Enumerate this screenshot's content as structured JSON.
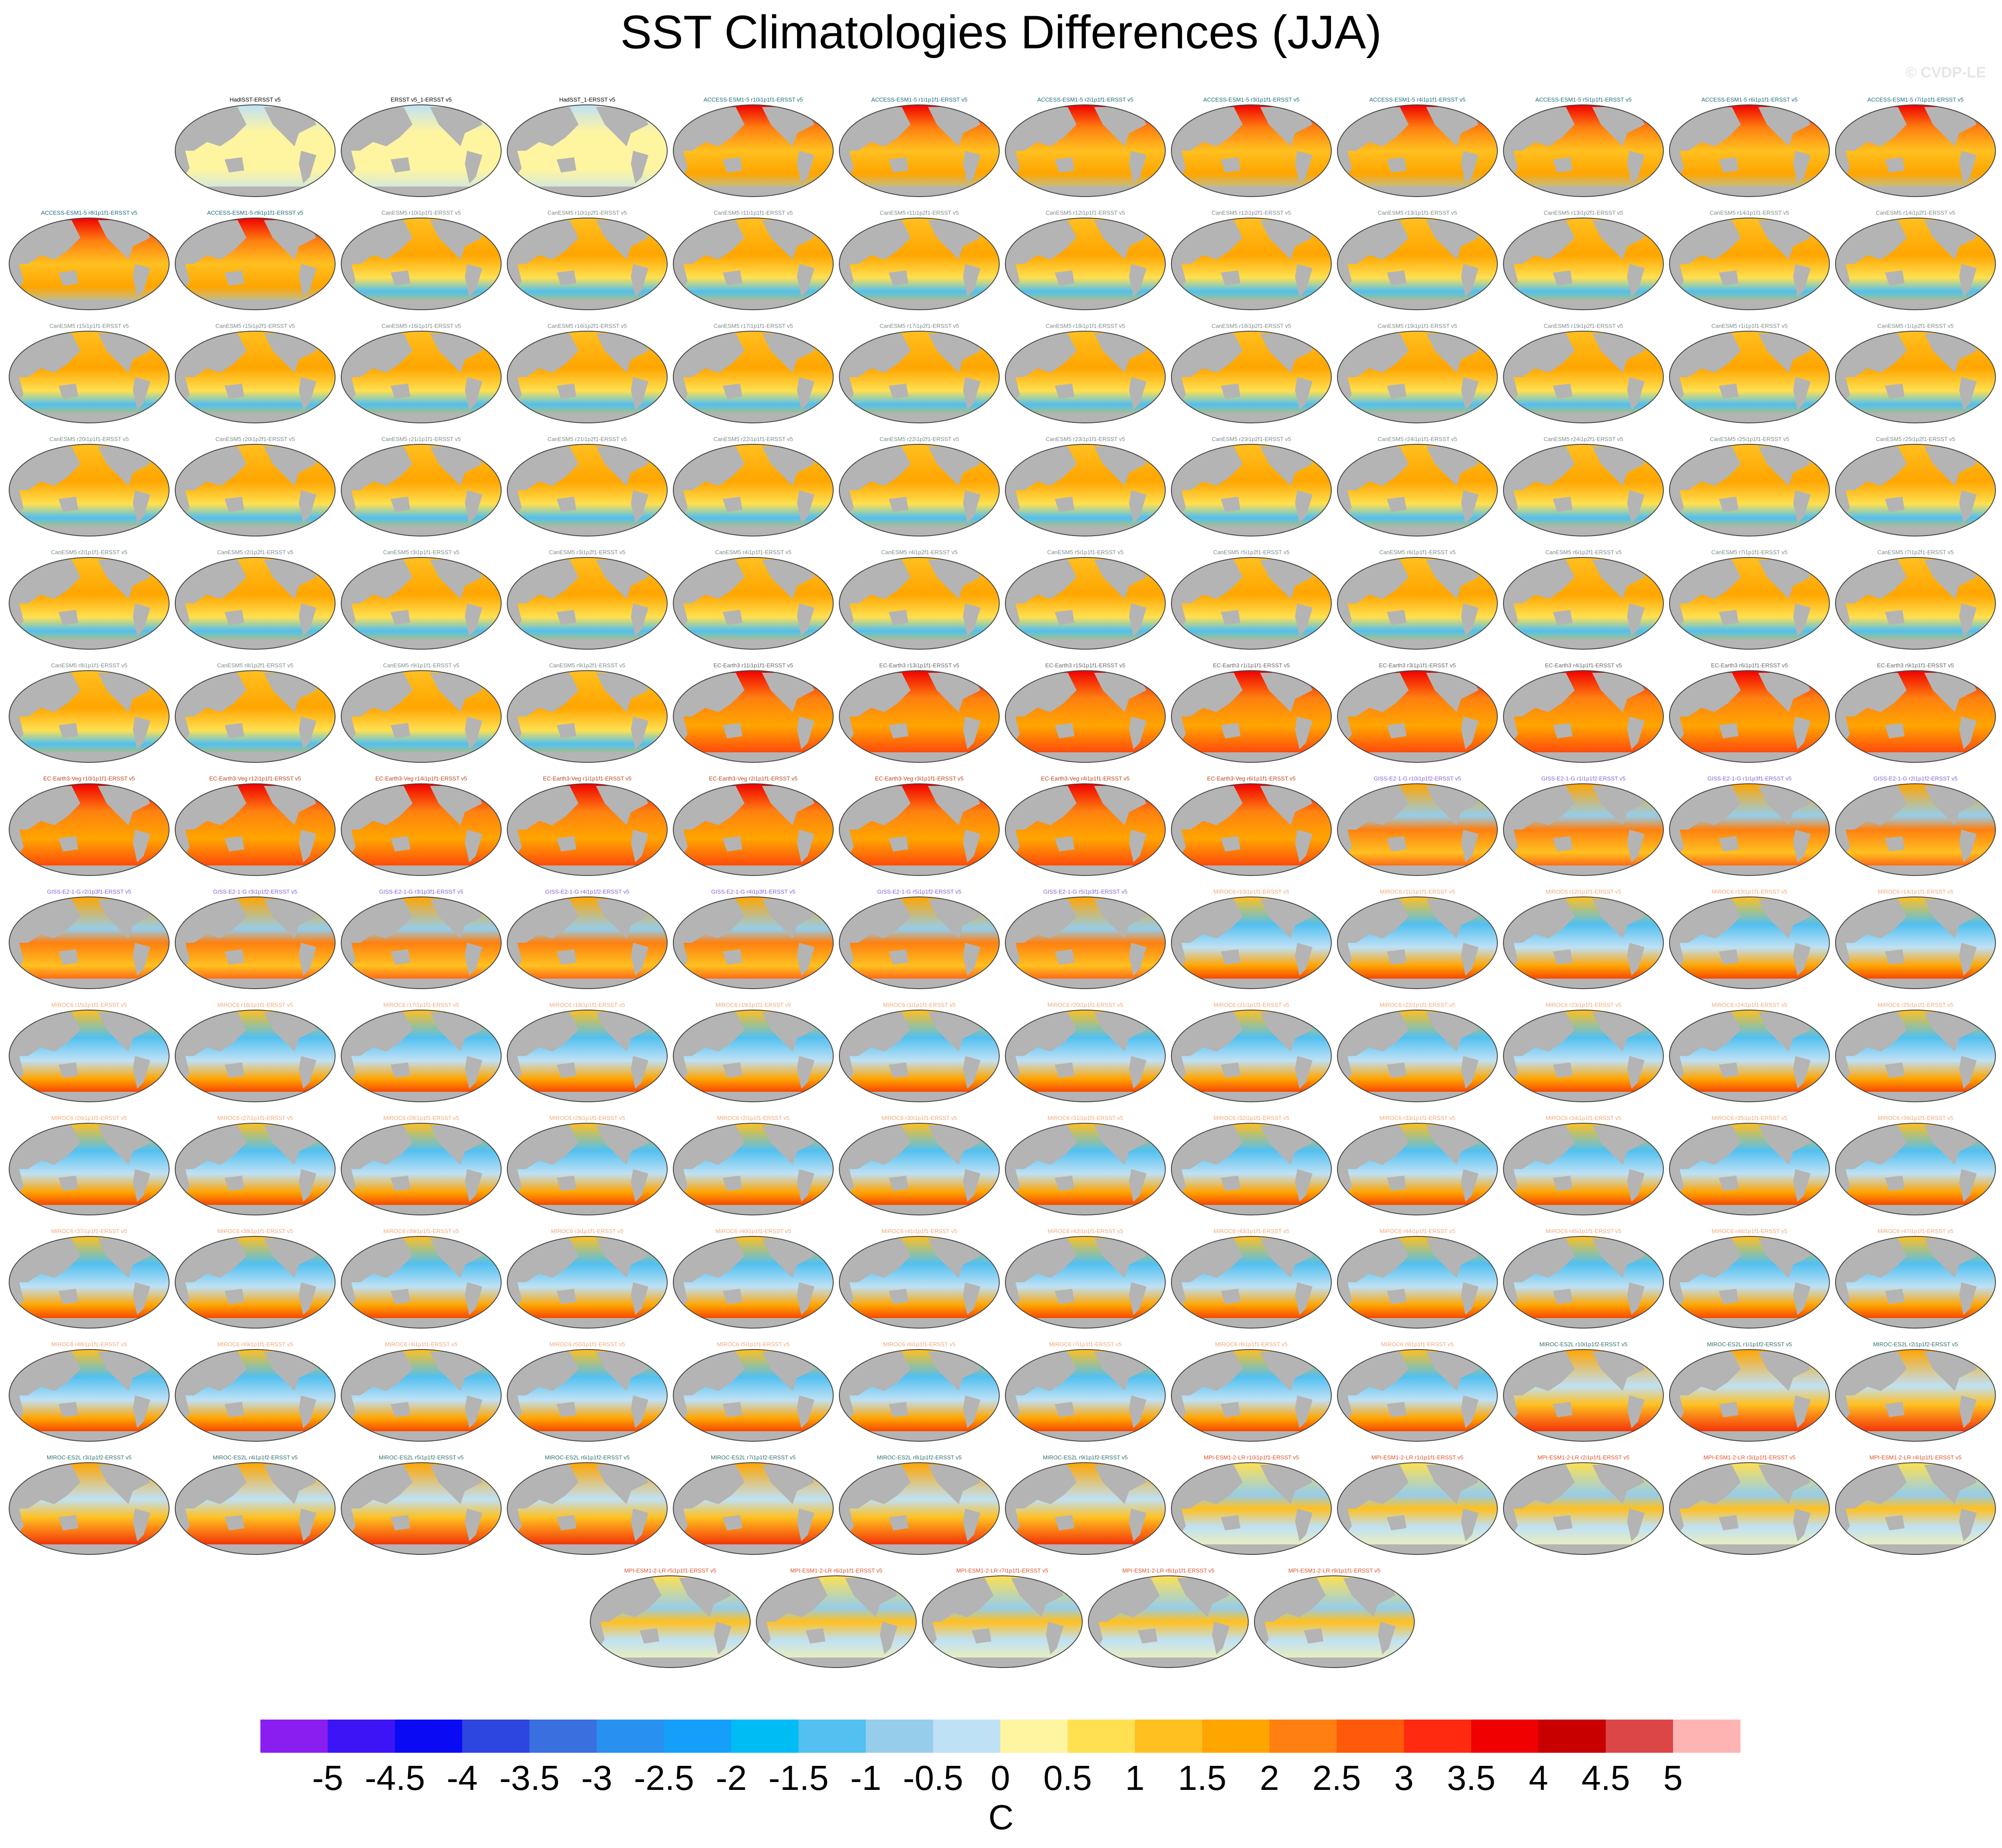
{
  "figure": {
    "title": "SST Climatologies Differences (JJA)",
    "copyright": "© CVDP-LE",
    "panels": [
      {
        "title": "HadISST-ERSST v5",
        "color": "#000000"
      },
      {
        "title": "ERSST v5_1-ERSST v5",
        "color": "#000000"
      },
      {
        "title": "HadSST_1-ERSST v5",
        "color": "#000000"
      },
      {
        "title": "ACCESS-ESM1-5 r10i1p1f1-ERSST v5",
        "color": "#1b6b7a"
      },
      {
        "title": "ACCESS-ESM1-5 r1i1p1f1-ERSST v5",
        "color": "#1b6b7a"
      },
      {
        "title": "ACCESS-ESM1-5 r2i1p1f1-ERSST v5",
        "color": "#1b6b7a"
      },
      {
        "title": "ACCESS-ESM1-5 r3i1p1f1-ERSST v5",
        "color": "#1b6b7a"
      },
      {
        "title": "ACCESS-ESM1-5 r4i1p1f1-ERSST v5",
        "color": "#1b6b7a"
      },
      {
        "title": "ACCESS-ESM1-5 r5i1p1f1-ERSST v5",
        "color": "#1b6b7a"
      },
      {
        "title": "ACCESS-ESM1-5 r6i1p1f1-ERSST v5",
        "color": "#1b6b7a"
      },
      {
        "title": "ACCESS-ESM1-5 r7i1p1f1-ERSST v5",
        "color": "#1b6b7a"
      },
      {
        "title": "ACCESS-ESM1-5 r8i1p1f1-ERSST v5",
        "color": "#1b6b7a"
      },
      {
        "title": "ACCESS-ESM1-5 r9i1p1f1-ERSST v5",
        "color": "#1b6b7a"
      },
      {
        "title": "CanESM5 r10i1p1f1-ERSST v5",
        "color": "#7d8a8a"
      },
      {
        "title": "CanESM5 r10i1p2f1-ERSST v5",
        "color": "#7d8a8a"
      },
      {
        "title": "CanESM5 r11i1p1f1-ERSST v5",
        "color": "#7d8a8a"
      },
      {
        "title": "CanESM5 r11i1p2f1-ERSST v5",
        "color": "#7d8a8a"
      },
      {
        "title": "CanESM5 r12i1p1f1-ERSST v5",
        "color": "#7d8a8a"
      },
      {
        "title": "CanESM5 r12i1p2f1-ERSST v5",
        "color": "#7d8a8a"
      },
      {
        "title": "CanESM5 r13i1p1f1-ERSST v5",
        "color": "#7d8a8a"
      },
      {
        "title": "CanESM5 r13i1p2f1-ERSST v5",
        "color": "#7d8a8a"
      },
      {
        "title": "CanESM5 r14i1p1f1-ERSST v5",
        "color": "#7d8a8a"
      },
      {
        "title": "CanESM5 r14i1p2f1-ERSST v5",
        "color": "#7d8a8a"
      },
      {
        "title": "CanESM5 r15i1p1f1-ERSST v5",
        "color": "#7d8a8a"
      },
      {
        "title": "CanESM5 r15i1p2f1-ERSST v5",
        "color": "#7d8a8a"
      },
      {
        "title": "CanESM5 r16i1p1f1-ERSST v5",
        "color": "#7d8a8a"
      },
      {
        "title": "CanESM5 r16i1p2f1-ERSST v5",
        "color": "#7d8a8a"
      },
      {
        "title": "CanESM5 r17i1p1f1-ERSST v5",
        "color": "#7d8a8a"
      },
      {
        "title": "CanESM5 r17i1p2f1-ERSST v5",
        "color": "#7d8a8a"
      },
      {
        "title": "CanESM5 r18i1p1f1-ERSST v5",
        "color": "#7d8a8a"
      },
      {
        "title": "CanESM5 r18i1p2f1-ERSST v5",
        "color": "#7d8a8a"
      },
      {
        "title": "CanESM5 r19i1p1f1-ERSST v5",
        "color": "#7d8a8a"
      },
      {
        "title": "CanESM5 r19i1p2f1-ERSST v5",
        "color": "#7d8a8a"
      },
      {
        "title": "CanESM5 r1i1p1f1-ERSST v5",
        "color": "#7d8a8a"
      },
      {
        "title": "CanESM5 r1i1p2f1-ERSST v5",
        "color": "#7d8a8a"
      },
      {
        "title": "CanESM5 r20i1p1f1-ERSST v5",
        "color": "#7d8a8a"
      },
      {
        "title": "CanESM5 r20i1p2f1-ERSST v5",
        "color": "#7d8a8a"
      },
      {
        "title": "CanESM5 r21i1p1f1-ERSST v5",
        "color": "#7d8a8a"
      },
      {
        "title": "CanESM5 r21i1p2f1-ERSST v5",
        "color": "#7d8a8a"
      },
      {
        "title": "CanESM5 r22i1p1f1-ERSST v5",
        "color": "#7d8a8a"
      },
      {
        "title": "CanESM5 r22i1p2f1-ERSST v5",
        "color": "#7d8a8a"
      },
      {
        "title": "CanESM5 r23i1p1f1-ERSST v5",
        "color": "#7d8a8a"
      },
      {
        "title": "CanESM5 r23i1p2f1-ERSST v5",
        "color": "#7d8a8a"
      },
      {
        "title": "CanESM5 r24i1p1f1-ERSST v5",
        "color": "#7d8a8a"
      },
      {
        "title": "CanESM5 r24i1p2f1-ERSST v5",
        "color": "#7d8a8a"
      },
      {
        "title": "CanESM5 r25i1p1f1-ERSST v5",
        "color": "#7d8a8a"
      },
      {
        "title": "CanESM5 r25i1p2f1-ERSST v5",
        "color": "#7d8a8a"
      },
      {
        "title": "CanESM5 r2i1p1f1-ERSST v5",
        "color": "#7d8a8a"
      },
      {
        "title": "CanESM5 r2i1p2f1-ERSST v5",
        "color": "#7d8a8a"
      },
      {
        "title": "CanESM5 r3i1p1f1-ERSST v5",
        "color": "#7d8a8a"
      },
      {
        "title": "CanESM5 r3i1p2f1-ERSST v5",
        "color": "#7d8a8a"
      },
      {
        "title": "CanESM5 r4i1p1f1-ERSST v5",
        "color": "#7d8a8a"
      },
      {
        "title": "CanESM5 r4i1p2f1-ERSST v5",
        "color": "#7d8a8a"
      },
      {
        "title": "CanESM5 r5i1p1f1-ERSST v5",
        "color": "#7d8a8a"
      },
      {
        "title": "CanESM5 r5i1p2f1-ERSST v5",
        "color": "#7d8a8a"
      },
      {
        "title": "CanESM5 r6i1p1f1-ERSST v5",
        "color": "#7d8a8a"
      },
      {
        "title": "CanESM5 r6i1p2f1-ERSST v5",
        "color": "#7d8a8a"
      },
      {
        "title": "CanESM5 r7i1p1f1-ERSST v5",
        "color": "#7d8a8a"
      },
      {
        "title": "CanESM5 r7i1p2f1-ERSST v5",
        "color": "#7d8a8a"
      },
      {
        "title": "CanESM5 r8i1p1f1-ERSST v5",
        "color": "#7d8a8a"
      },
      {
        "title": "CanESM5 r8i1p2f1-ERSST v5",
        "color": "#7d8a8a"
      },
      {
        "title": "CanESM5 r9i1p1f1-ERSST v5",
        "color": "#7d8a8a"
      },
      {
        "title": "CanESM5 r9i1p2f1-ERSST v5",
        "color": "#7d8a8a"
      },
      {
        "title": "EC-Earth3 r11i1p1f1-ERSST v5",
        "color": "#666666"
      },
      {
        "title": "EC-Earth3 r13i1p1f1-ERSST v5",
        "color": "#666666"
      },
      {
        "title": "EC-Earth3 r15i1p1f1-ERSST v5",
        "color": "#666666"
      },
      {
        "title": "EC-Earth3 r1i1p1f1-ERSST v5",
        "color": "#666666"
      },
      {
        "title": "EC-Earth3 r3i1p1f1-ERSST v5",
        "color": "#666666"
      },
      {
        "title": "EC-Earth3 r4i1p1f1-ERSST v5",
        "color": "#666666"
      },
      {
        "title": "EC-Earth3 r6i1p1f1-ERSST v5",
        "color": "#666666"
      },
      {
        "title": "EC-Earth3 r9i1p1f1-ERSST v5",
        "color": "#666666"
      },
      {
        "title": "EC-Earth3-Veg r10i1p1f1-ERSST v5",
        "color": "#b5471b"
      },
      {
        "title": "EC-Earth3-Veg r12i1p1f1-ERSST v5",
        "color": "#b5471b"
      },
      {
        "title": "EC-Earth3-Veg r14i1p1f1-ERSST v5",
        "color": "#b5471b"
      },
      {
        "title": "EC-Earth3-Veg r1i1p1f1-ERSST v5",
        "color": "#b5471b"
      },
      {
        "title": "EC-Earth3-Veg r2i1p1f1-ERSST v5",
        "color": "#b5471b"
      },
      {
        "title": "EC-Earth3-Veg r3i1p1f1-ERSST v5",
        "color": "#b5471b"
      },
      {
        "title": "EC-Earth3-Veg r4i1p1f1-ERSST v5",
        "color": "#b5471b"
      },
      {
        "title": "EC-Earth3-Veg r6i1p1f1-ERSST v5",
        "color": "#b5471b"
      },
      {
        "title": "GISS-E2-1-G r10i1p1f2-ERSST v5",
        "color": "#8a5fd1"
      },
      {
        "title": "GISS-E2-1-G r1i1p1f2-ERSST v5",
        "color": "#8a5fd1"
      },
      {
        "title": "GISS-E2-1-G r1i1p3f1-ERSST v5",
        "color": "#8a5fd1"
      },
      {
        "title": "GISS-E2-1-G r2i1p1f2-ERSST v5",
        "color": "#8a5fd1"
      },
      {
        "title": "GISS-E2-1-G r2i1p3f1-ERSST v5",
        "color": "#8a5fd1"
      },
      {
        "title": "GISS-E2-1-G r3i1p1f2-ERSST v5",
        "color": "#8a5fd1"
      },
      {
        "title": "GISS-E2-1-G r3i1p3f1-ERSST v5",
        "color": "#8a5fd1"
      },
      {
        "title": "GISS-E2-1-G r4i1p1f2-ERSST v5",
        "color": "#8a5fd1"
      },
      {
        "title": "GISS-E2-1-G r4i1p3f1-ERSST v5",
        "color": "#8a5fd1"
      },
      {
        "title": "GISS-E2-1-G r5i1p1f2-ERSST v5",
        "color": "#8a5fd1"
      },
      {
        "title": "GISS-E2-1-G r5i1p3f1-ERSST v5",
        "color": "#8a5fd1"
      },
      {
        "title": "MIROC6 r10i1p1f1-ERSST v5",
        "color": "#f0a878"
      },
      {
        "title": "MIROC6 r11i1p1f1-ERSST v5",
        "color": "#f0a878"
      },
      {
        "title": "MIROC6 r12i1p1f1-ERSST v5",
        "color": "#f0a878"
      },
      {
        "title": "MIROC6 r13i1p1f1-ERSST v5",
        "color": "#f0a878"
      },
      {
        "title": "MIROC6 r14i1p1f1-ERSST v5",
        "color": "#f0a878"
      },
      {
        "title": "MIROC6 r15i1p1f1-ERSST v5",
        "color": "#f0a878"
      },
      {
        "title": "MIROC6 r16i1p1f1-ERSST v5",
        "color": "#f0a878"
      },
      {
        "title": "MIROC6 r17i1p1f1-ERSST v5",
        "color": "#f0a878"
      },
      {
        "title": "MIROC6 r18i1p1f1-ERSST v5",
        "color": "#f0a878"
      },
      {
        "title": "MIROC6 r19i1p1f1-ERSST v5",
        "color": "#f0a878"
      },
      {
        "title": "MIROC6 r1i1p1f1-ERSST v5",
        "color": "#f0a878"
      },
      {
        "title": "MIROC6 r20i1p1f1-ERSST v5",
        "color": "#f0a878"
      },
      {
        "title": "MIROC6 r21i1p1f1-ERSST v5",
        "color": "#f0a878"
      },
      {
        "title": "MIROC6 r22i1p1f1-ERSST v5",
        "color": "#f0a878"
      },
      {
        "title": "MIROC6 r23i1p1f1-ERSST v5",
        "color": "#f0a878"
      },
      {
        "title": "MIROC6 r24i1p1f1-ERSST v5",
        "color": "#f0a878"
      },
      {
        "title": "MIROC6 r25i1p1f1-ERSST v5",
        "color": "#f0a878"
      },
      {
        "title": "MIROC6 r26i1p1f1-ERSST v5",
        "color": "#f0a878"
      },
      {
        "title": "MIROC6 r27i1p1f1-ERSST v5",
        "color": "#f0a878"
      },
      {
        "title": "MIROC6 r28i1p1f1-ERSST v5",
        "color": "#f0a878"
      },
      {
        "title": "MIROC6 r29i1p1f1-ERSST v5",
        "color": "#f0a878"
      },
      {
        "title": "MIROC6 r2i1p1f1-ERSST v5",
        "color": "#f0a878"
      },
      {
        "title": "MIROC6 r30i1p1f1-ERSST v5",
        "color": "#f0a878"
      },
      {
        "title": "MIROC6 r31i1p1f1-ERSST v5",
        "color": "#f0a878"
      },
      {
        "title": "MIROC6 r32i1p1f1-ERSST v5",
        "color": "#f0a878"
      },
      {
        "title": "MIROC6 r33i1p1f1-ERSST v5",
        "color": "#f0a878"
      },
      {
        "title": "MIROC6 r34i1p1f1-ERSST v5",
        "color": "#f0a878"
      },
      {
        "title": "MIROC6 r35i1p1f1-ERSST v5",
        "color": "#f0a878"
      },
      {
        "title": "MIROC6 r36i1p1f1-ERSST v5",
        "color": "#f0a878"
      },
      {
        "title": "MIROC6 r37i1p1f1-ERSST v5",
        "color": "#f0a878"
      },
      {
        "title": "MIROC6 r38i1p1f1-ERSST v5",
        "color": "#f0a878"
      },
      {
        "title": "MIROC6 r39i1p1f1-ERSST v5",
        "color": "#f0a878"
      },
      {
        "title": "MIROC6 r3i1p1f1-ERSST v5",
        "color": "#f0a878"
      },
      {
        "title": "MIROC6 r40i1p1f1-ERSST v5",
        "color": "#f0a878"
      },
      {
        "title": "MIROC6 r41i1p1f1-ERSST v5",
        "color": "#f0a878"
      },
      {
        "title": "MIROC6 r42i1p1f1-ERSST v5",
        "color": "#f0a878"
      },
      {
        "title": "MIROC6 r43i1p1f1-ERSST v5",
        "color": "#f0a878"
      },
      {
        "title": "MIROC6 r44i1p1f1-ERSST v5",
        "color": "#f0a878"
      },
      {
        "title": "MIROC6 r45i1p1f1-ERSST v5",
        "color": "#f0a878"
      },
      {
        "title": "MIROC6 r46i1p1f1-ERSST v5",
        "color": "#f0a878"
      },
      {
        "title": "MIROC6 r47i1p1f1-ERSST v5",
        "color": "#f0a878"
      },
      {
        "title": "MIROC6 r48i1p1f1-ERSST v5",
        "color": "#f0a878"
      },
      {
        "title": "MIROC6 r49i1p1f1-ERSST v5",
        "color": "#f0a878"
      },
      {
        "title": "MIROC6 r4i1p1f1-ERSST v5",
        "color": "#f0a878"
      },
      {
        "title": "MIROC6 r50i1p1f1-ERSST v5",
        "color": "#f0a878"
      },
      {
        "title": "MIROC6 r5i1p1f1-ERSST v5",
        "color": "#f0a878"
      },
      {
        "title": "MIROC6 r6i1p1f1-ERSST v5",
        "color": "#f0a878"
      },
      {
        "title": "MIROC6 r7i1p1f1-ERSST v5",
        "color": "#f0a878"
      },
      {
        "title": "MIROC6 r8i1p1f1-ERSST v5",
        "color": "#f0a878"
      },
      {
        "title": "MIROC6 r9i1p1f1-ERSST v5",
        "color": "#f0a878"
      },
      {
        "title": "MIROC-ES2L r10i1p1f2-ERSST v5",
        "color": "#2f6f6f"
      },
      {
        "title": "MIROC-ES2L r1i1p1f2-ERSST v5",
        "color": "#2f6f6f"
      },
      {
        "title": "MIROC-ES2L r2i1p1f2-ERSST v5",
        "color": "#2f6f6f"
      },
      {
        "title": "MIROC-ES2L r3i1p1f2-ERSST v5",
        "color": "#2f6f6f"
      },
      {
        "title": "MIROC-ES2L r4i1p1f2-ERSST v5",
        "color": "#2f6f6f"
      },
      {
        "title": "MIROC-ES2L r5i1p1f2-ERSST v5",
        "color": "#2f6f6f"
      },
      {
        "title": "MIROC-ES2L r6i1p1f2-ERSST v5",
        "color": "#2f6f6f"
      },
      {
        "title": "MIROC-ES2L r7i1p1f2-ERSST v5",
        "color": "#2f6f6f"
      },
      {
        "title": "MIROC-ES2L r8i1p1f2-ERSST v5",
        "color": "#2f6f6f"
      },
      {
        "title": "MIROC-ES2L r9i1p1f2-ERSST v5",
        "color": "#2f6f6f"
      },
      {
        "title": "MPI-ESM1-2-LR r10i1p1f1-ERSST v5",
        "color": "#e0502a"
      },
      {
        "title": "MPI-ESM1-2-LR r1i1p1f1-ERSST v5",
        "color": "#e0502a"
      },
      {
        "title": "MPI-ESM1-2-LR r2i1p1f1-ERSST v5",
        "color": "#e0502a"
      },
      {
        "title": "MPI-ESM1-2-LR r3i1p1f1-ERSST v5",
        "color": "#e0502a"
      },
      {
        "title": "MPI-ESM1-2-LR r4i1p1f1-ERSST v5",
        "color": "#e0502a"
      },
      {
        "title": "MPI-ESM1-2-LR r5i1p1f1-ERSST v5",
        "color": "#e0502a"
      },
      {
        "title": "MPI-ESM1-2-LR r6i1p1f1-ERSST v5",
        "color": "#e0502a"
      },
      {
        "title": "MPI-ESM1-2-LR r7i1p1f1-ERSST v5",
        "color": "#e0502a"
      },
      {
        "title": "MPI-ESM1-2-LR r8i1p1f1-ERSST v5",
        "color": "#e0502a"
      },
      {
        "title": "MPI-ESM1-2-LR r9i1p1f1-ERSST v5",
        "color": "#e0502a"
      }
    ],
    "colorbar": {
      "levels": [
        -5,
        -4.5,
        -4,
        -3.5,
        -3,
        -2.5,
        -2,
        -1.5,
        -1,
        -0.5,
        0,
        0.5,
        1,
        1.5,
        2,
        2.5,
        3,
        3.5,
        4,
        4.5,
        5
      ],
      "colors": [
        "#8a1ef0",
        "#3c14f5",
        "#0a0af5",
        "#2d46e0",
        "#3a6fe0",
        "#2890f0",
        "#14a0fa",
        "#00bcf5",
        "#52c0f0",
        "#96cdeb",
        "#bfe1f5",
        "#fff5a0",
        "#ffe050",
        "#ffc020",
        "#ffa500",
        "#ff8010",
        "#ff5a0a",
        "#ff2a10",
        "#f00000",
        "#c80000",
        "#dc4646",
        "#ffb4b4"
      ],
      "label": "C"
    }
  }
}
